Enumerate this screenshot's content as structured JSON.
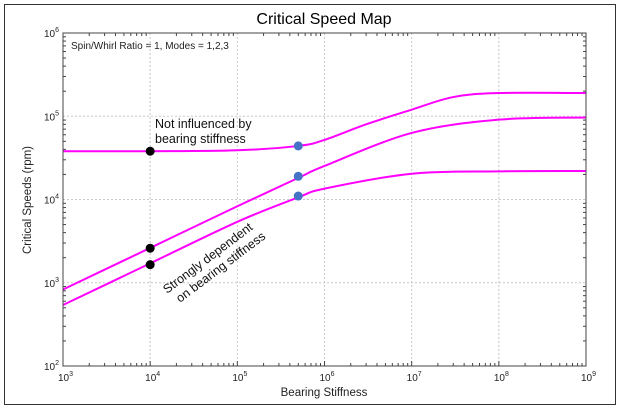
{
  "chart_data": {
    "type": "line",
    "title": "Critical Speed Map",
    "subtitle": "Spin/Whirl Ratio = 1, Modes = 1,2,3",
    "xlabel": "Bearing Stiffness",
    "ylabel": "Critical Speeds (rpm)",
    "xscale": "log",
    "yscale": "log",
    "xlim": [
      1000,
      1000000000
    ],
    "ylim": [
      100,
      1000000
    ],
    "x_ticks": [
      {
        "b": "10",
        "e": "3"
      },
      {
        "b": "10",
        "e": "4"
      },
      {
        "b": "10",
        "e": "5"
      },
      {
        "b": "10",
        "e": "6"
      },
      {
        "b": "10",
        "e": "7"
      },
      {
        "b": "10",
        "e": "8"
      },
      {
        "b": "10",
        "e": "9"
      }
    ],
    "y_ticks": [
      {
        "b": "10",
        "e": "2"
      },
      {
        "b": "10",
        "e": "3"
      },
      {
        "b": "10",
        "e": "4"
      },
      {
        "b": "10",
        "e": "5"
      },
      {
        "b": "10",
        "e": "6"
      }
    ],
    "grid": true,
    "line_color": "#ff00ff",
    "series": [
      {
        "x": [
          1000,
          10000,
          100000,
          500000,
          1000000,
          10000000,
          100000000,
          1000000000
        ],
        "y": [
          540,
          1710,
          5400,
          10600,
          13500,
          20400,
          21800,
          22000
        ]
      },
      {
        "x": [
          1000,
          10000,
          100000,
          500000,
          1000000,
          10000000,
          100000000,
          1000000000
        ],
        "y": [
          830,
          2620,
          8300,
          18200,
          25300,
          63000,
          91000,
          96500
        ]
      },
      {
        "x": [
          1000,
          10000,
          100000,
          500000,
          1000000,
          3000000,
          10000000,
          30000000,
          100000000,
          1000000000
        ],
        "y": [
          38000,
          38000,
          39000,
          44000,
          52000,
          80000,
          120000,
          170000,
          190000,
          190000
        ]
      }
    ],
    "markers": [
      {
        "x": 10000,
        "y": 38000,
        "color": "#000000"
      },
      {
        "x": 10000,
        "y": 2600,
        "color": "#000000"
      },
      {
        "x": 10000,
        "y": 1650,
        "color": "#000000"
      },
      {
        "x": 500000,
        "y": 44000,
        "color": "#4472c4"
      },
      {
        "x": 500000,
        "y": 19000,
        "color": "#4472c4"
      },
      {
        "x": 500000,
        "y": 11000,
        "color": "#4472c4"
      }
    ],
    "annotations": [
      {
        "lines": [
          "Not influenced by",
          "bearing stiffness"
        ]
      },
      {
        "lines": [
          "Strongly dependent",
          "on bearing stiffness"
        ]
      }
    ]
  }
}
